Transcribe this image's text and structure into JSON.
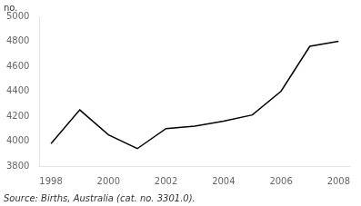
{
  "chart_data": {
    "type": "line",
    "x": [
      1998,
      1999,
      2000,
      2001,
      2002,
      2003,
      2004,
      2005,
      2006,
      2007,
      2008
    ],
    "values": [
      3980,
      4250,
      4050,
      3940,
      4100,
      4120,
      4160,
      4210,
      4400,
      4760,
      4800
    ],
    "color": "#000000",
    "ylabel": "no.",
    "annotations": [
      "Source: Births, Australia (cat. no. 3301.0)."
    ],
    "xlim": [
      1997.6,
      2008.4
    ],
    "ylim": [
      3800,
      5000
    ],
    "xticks": [
      1998,
      2000,
      2002,
      2004,
      2006,
      2008
    ],
    "yticks": [
      3800,
      4000,
      4200,
      4400,
      4600,
      4800,
      5000
    ],
    "grid": false
  }
}
